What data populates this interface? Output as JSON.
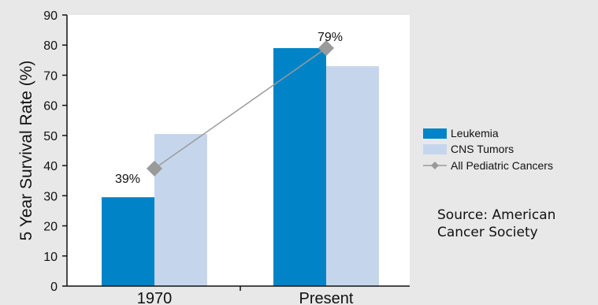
{
  "chart_data": {
    "type": "bar",
    "categories": [
      "1970",
      "Present"
    ],
    "series": [
      {
        "name": "Leukemia",
        "kind": "bar",
        "values": [
          29.5,
          79
        ],
        "color": "#0084c7"
      },
      {
        "name": "CNS Tumors",
        "kind": "bar",
        "values": [
          50.5,
          73
        ],
        "color": "#c5d6ec"
      },
      {
        "name": "All Pediatric Cancers",
        "kind": "line",
        "values": [
          39,
          79
        ],
        "color": "#9a9a9a",
        "labels": [
          "39%",
          "79%"
        ]
      }
    ],
    "ylabel": "5 Year Survival Rate (%)",
    "ylim": [
      0,
      90
    ],
    "yticks": [
      0,
      10,
      20,
      30,
      40,
      50,
      60,
      70,
      80,
      90
    ],
    "grid": false,
    "legend": "right"
  },
  "source_note": {
    "line1": "Source: American",
    "line2": "Cancer Society"
  }
}
